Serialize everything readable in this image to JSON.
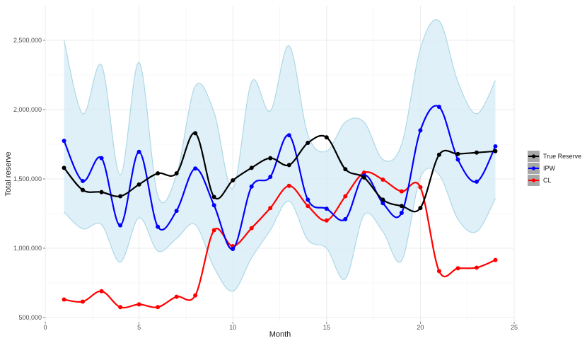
{
  "chart_data": {
    "type": "line",
    "xlabel": "Month",
    "ylabel": "Total reserve",
    "xlim": [
      0,
      25
    ],
    "ylim": [
      480000,
      2700000
    ],
    "x_ticks": [
      0,
      5,
      10,
      15,
      20,
      25
    ],
    "x_tick_labels": [
      "0",
      "5",
      "10",
      "15",
      "20",
      "25"
    ],
    "y_ticks": [
      500000,
      1000000,
      1500000,
      2000000,
      2500000
    ],
    "y_tick_labels": [
      "500,000",
      "1,000,000",
      "1,500,000",
      "2,000,000",
      "2,500,000"
    ],
    "grid": true,
    "legend_position": "right",
    "x": [
      1,
      2,
      3,
      4,
      5,
      6,
      7,
      8,
      9,
      10,
      11,
      12,
      13,
      14,
      15,
      16,
      17,
      18,
      19,
      20,
      21,
      22,
      23,
      24
    ],
    "band": {
      "color": "#add8e6",
      "fill": "#d6ebf5",
      "upper": [
        2500000,
        1970000,
        2320000,
        1530000,
        2340000,
        1380000,
        1530000,
        2170000,
        1980000,
        1430000,
        2200000,
        1990000,
        2460000,
        1820000,
        1700000,
        1910000,
        1910000,
        1640000,
        1750000,
        2440000,
        2640000,
        2200000,
        1970000,
        2210000
      ],
      "lower": [
        1260000,
        1140000,
        1170000,
        900000,
        1220000,
        980000,
        1070000,
        1170000,
        860000,
        690000,
        930000,
        1130000,
        1340000,
        1060000,
        1000000,
        780000,
        1240000,
        1120000,
        910000,
        1510000,
        1530000,
        1210000,
        1120000,
        1360000
      ]
    },
    "series": [
      {
        "name": "True Reserve",
        "color": "#000000",
        "values": [
          1580000,
          1420000,
          1405000,
          1375000,
          1460000,
          1540000,
          1540000,
          1830000,
          1370000,
          1490000,
          1580000,
          1650000,
          1600000,
          1760000,
          1800000,
          1570000,
          1510000,
          1350000,
          1305000,
          1290000,
          1675000,
          1680000,
          1690000,
          1700000
        ]
      },
      {
        "name": "IPW",
        "color": "#0000ff",
        "values": [
          1775000,
          1485000,
          1650000,
          1165000,
          1695000,
          1155000,
          1270000,
          1575000,
          1310000,
          995000,
          1445000,
          1515000,
          1815000,
          1350000,
          1285000,
          1210000,
          1525000,
          1325000,
          1255000,
          1850000,
          2020000,
          1640000,
          1480000,
          1735000
        ]
      },
      {
        "name": "CL",
        "color": "#ff0000",
        "values": [
          630000,
          615000,
          690000,
          575000,
          595000,
          575000,
          650000,
          660000,
          1130000,
          1015000,
          1145000,
          1290000,
          1450000,
          1305000,
          1200000,
          1375000,
          1545000,
          1495000,
          1410000,
          1440000,
          835000,
          855000,
          860000,
          915000
        ]
      }
    ]
  }
}
